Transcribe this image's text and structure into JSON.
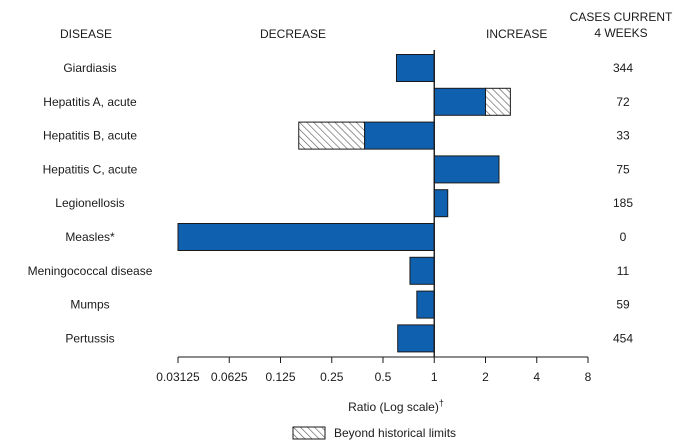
{
  "headers": {
    "disease": "DISEASE",
    "decrease": "DECREASE",
    "increase": "INCREASE",
    "cases_line1": "CASES CURRENT",
    "cases_line2": "4 WEEKS"
  },
  "axis": {
    "xlabel": "Ratio (Log scale)",
    "xlabel_mark": "†"
  },
  "legend": {
    "beyond_label": "Beyond historical limits"
  },
  "colors": {
    "bar_fill": "#1060b0",
    "bar_stroke": "#1a1a1a",
    "hatch_fill": "#dcdcdc"
  },
  "chart_data": {
    "type": "bar",
    "orientation": "horizontal",
    "scale": "log2",
    "xlim": [
      0.03125,
      8
    ],
    "ticks": [
      {
        "value": 0.03125,
        "label": "0.03125"
      },
      {
        "value": 0.0625,
        "label": "0.0625"
      },
      {
        "value": 0.125,
        "label": "0.125"
      },
      {
        "value": 0.25,
        "label": "0.25"
      },
      {
        "value": 0.5,
        "label": "0.5"
      },
      {
        "value": 1,
        "label": "1"
      },
      {
        "value": 2,
        "label": "2"
      },
      {
        "value": 4,
        "label": "4"
      },
      {
        "value": 8,
        "label": "8"
      }
    ],
    "reference_value": 1,
    "rows": [
      {
        "name": "Giardiasis",
        "ratio": 0.6,
        "beyond": null,
        "cases": "344"
      },
      {
        "name": "Hepatitis A, acute",
        "ratio": 2.0,
        "beyond": 2.8,
        "cases": "72"
      },
      {
        "name": "Hepatitis B, acute",
        "ratio": 0.39,
        "beyond": 0.16,
        "cases": "33"
      },
      {
        "name": "Hepatitis C, acute",
        "ratio": 2.4,
        "beyond": null,
        "cases": "75"
      },
      {
        "name": "Legionellosis",
        "ratio": 1.2,
        "beyond": null,
        "cases": "185"
      },
      {
        "name": "Measles*",
        "ratio": 0.03125,
        "beyond": null,
        "cases": "0"
      },
      {
        "name": "Meningococcal disease",
        "ratio": 0.72,
        "beyond": null,
        "cases": "11"
      },
      {
        "name": "Mumps",
        "ratio": 0.79,
        "beyond": null,
        "cases": "59"
      },
      {
        "name": "Pertussis",
        "ratio": 0.61,
        "beyond": null,
        "cases": "454"
      }
    ]
  }
}
